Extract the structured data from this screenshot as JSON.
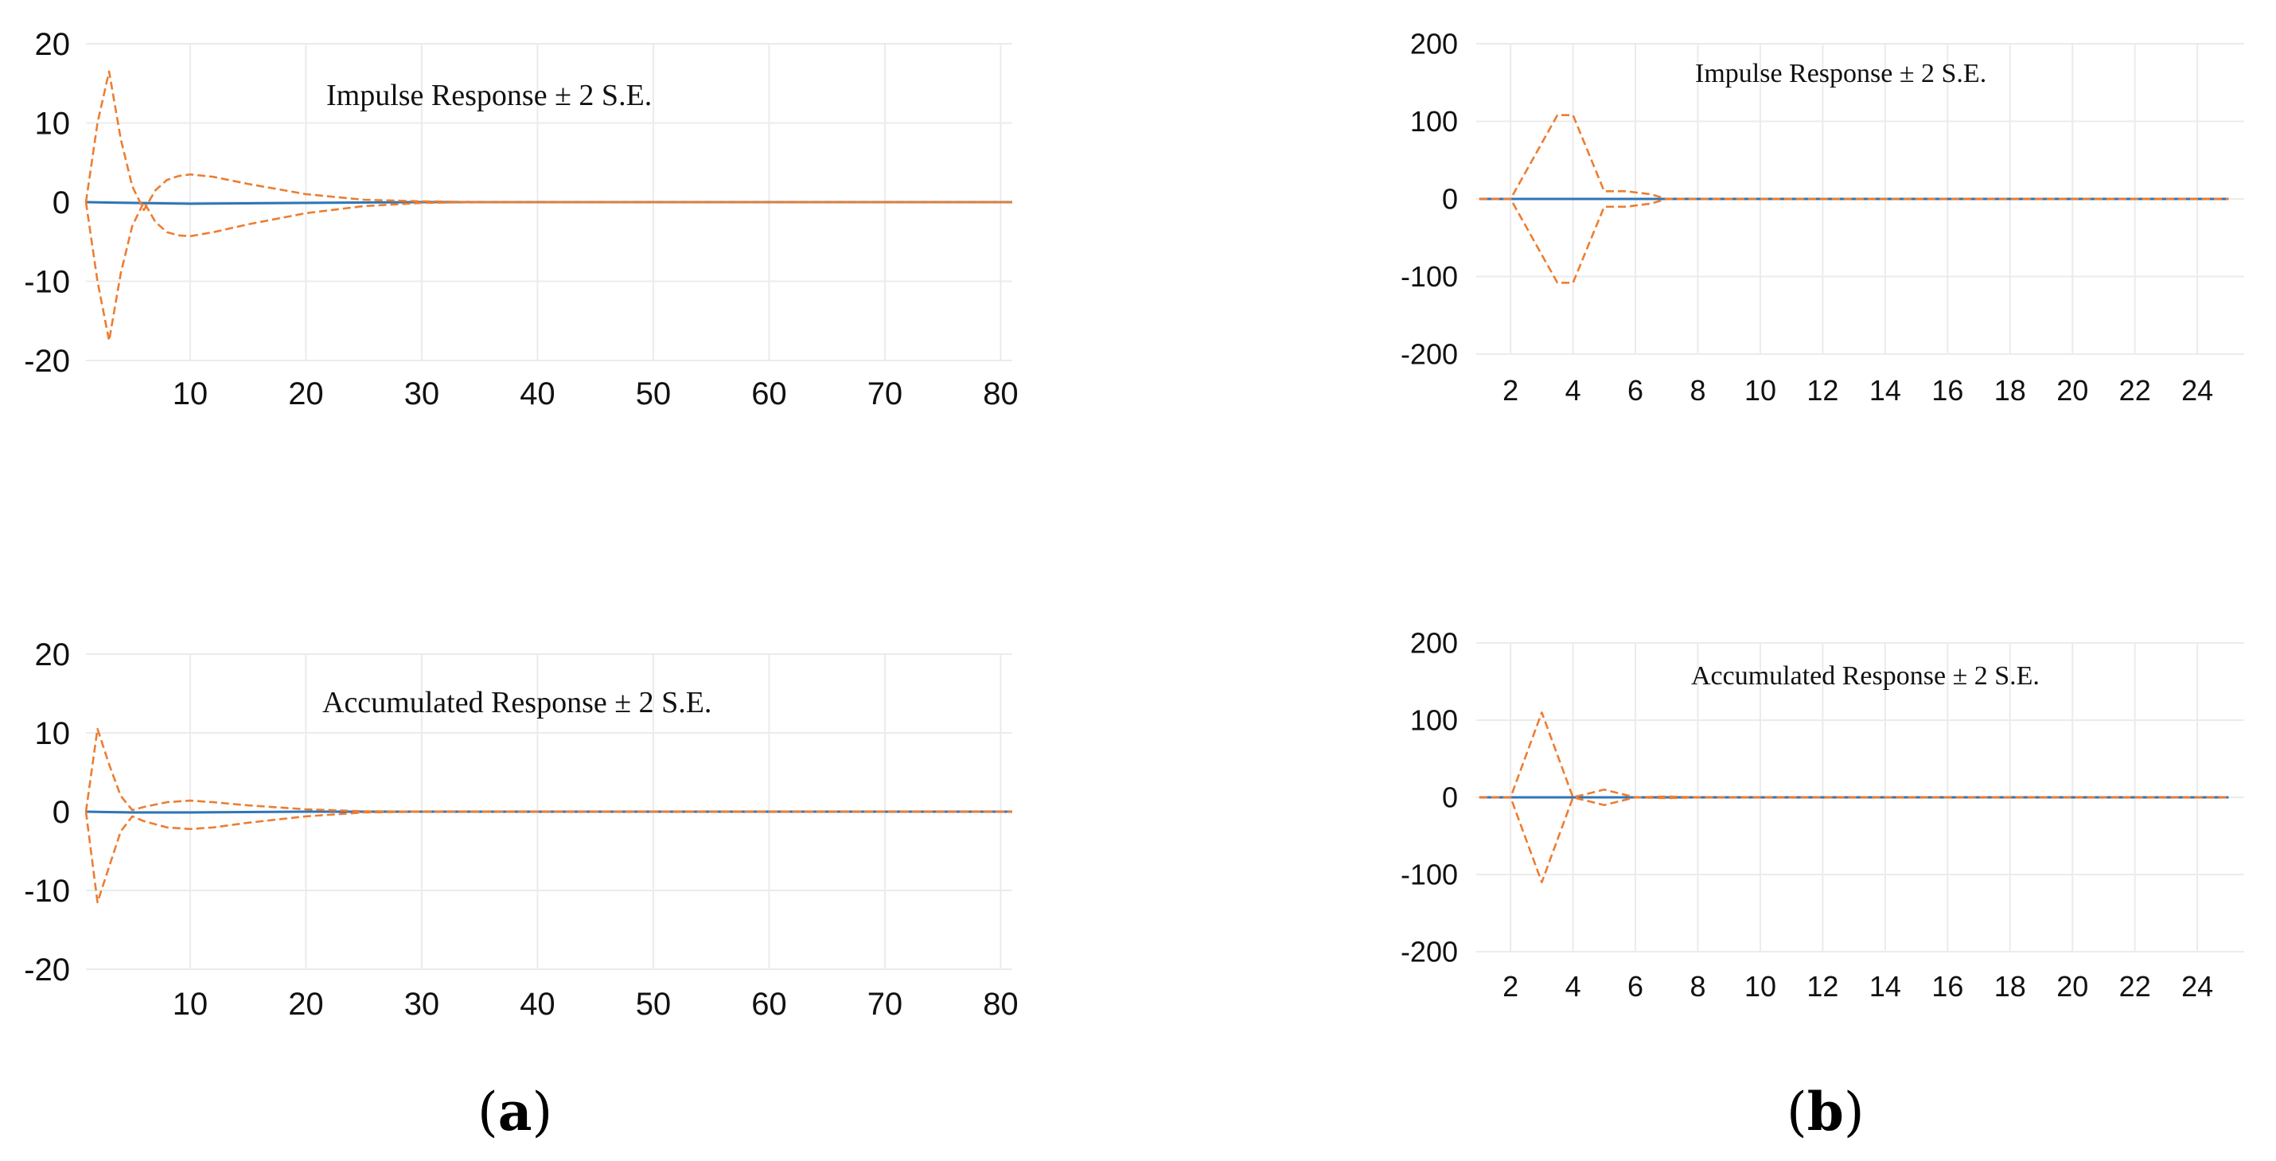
{
  "colors": {
    "upper_band": "#ED7D31",
    "lower_band": "#ED7D31",
    "response": "#2E75B6",
    "grid": "#EBEBEB",
    "text": "#111111"
  },
  "panel_labels": {
    "a": "a",
    "b": "b"
  },
  "chart_data": [
    {
      "id": "a-top",
      "type": "line",
      "title": "Impulse Response ± 2 S.E.",
      "xlim": [
        1,
        81
      ],
      "ylim": [
        -20,
        20
      ],
      "yticks": [
        20,
        10,
        0,
        -10,
        -20
      ],
      "xticks": [
        10,
        20,
        30,
        40,
        50,
        60,
        70,
        80
      ],
      "grid": true,
      "series": [
        {
          "role": "response",
          "style": "solid",
          "x": [
            1,
            5,
            10,
            20,
            30,
            40,
            50,
            60,
            70,
            81
          ],
          "y": [
            0,
            -0.1,
            -0.2,
            -0.1,
            0,
            0,
            0,
            0,
            0,
            0
          ]
        },
        {
          "role": "upper",
          "style": "dashed",
          "x": [
            1,
            2,
            3,
            4,
            5,
            6,
            7,
            8,
            9,
            10,
            12,
            15,
            20,
            25,
            30,
            35,
            40,
            50,
            60,
            70,
            81
          ],
          "y": [
            0,
            10,
            16.5,
            8,
            2,
            -1,
            1.5,
            2.8,
            3.3,
            3.5,
            3.2,
            2.3,
            1.0,
            0.3,
            0.1,
            0,
            0,
            0,
            0,
            0,
            0
          ]
        },
        {
          "role": "lower",
          "style": "dashed",
          "x": [
            1,
            2,
            3,
            4,
            5,
            6,
            7,
            8,
            9,
            10,
            12,
            15,
            20,
            25,
            30,
            35,
            40,
            50,
            60,
            70,
            81
          ],
          "y": [
            0,
            -10,
            -17.5,
            -9,
            -3,
            0,
            -2.5,
            -3.8,
            -4.2,
            -4.3,
            -3.8,
            -2.8,
            -1.4,
            -0.5,
            -0.1,
            0,
            0,
            0,
            0,
            0,
            0
          ]
        }
      ]
    },
    {
      "id": "a-bottom",
      "type": "line",
      "title": "Accumulated Response ± 2 S.E.",
      "xlim": [
        1,
        81
      ],
      "ylim": [
        -20,
        20
      ],
      "yticks": [
        20,
        10,
        0,
        -10,
        -20
      ],
      "xticks": [
        10,
        20,
        30,
        40,
        50,
        60,
        70,
        80
      ],
      "grid": true,
      "series": [
        {
          "role": "response",
          "style": "solid",
          "x": [
            1,
            5,
            10,
            20,
            30,
            40,
            50,
            60,
            70,
            81
          ],
          "y": [
            0,
            -0.1,
            -0.1,
            0,
            0,
            0,
            0,
            0,
            0,
            0
          ]
        },
        {
          "role": "upper",
          "style": "dashed",
          "x": [
            1,
            2,
            3,
            4,
            5,
            6,
            8,
            10,
            12,
            15,
            20,
            25,
            30,
            40,
            50,
            60,
            70,
            81
          ],
          "y": [
            0,
            10.5,
            6,
            2,
            0.2,
            0.6,
            1.2,
            1.4,
            1.2,
            0.8,
            0.3,
            0.05,
            0,
            0,
            0,
            0,
            0,
            0
          ]
        },
        {
          "role": "lower",
          "style": "dashed",
          "x": [
            1,
            2,
            3,
            4,
            5,
            6,
            8,
            10,
            12,
            15,
            20,
            25,
            30,
            40,
            50,
            60,
            70,
            81
          ],
          "y": [
            0,
            -11.5,
            -7,
            -2.5,
            -0.6,
            -1.2,
            -2.0,
            -2.2,
            -2.0,
            -1.4,
            -0.6,
            -0.1,
            0,
            0,
            0,
            0,
            0,
            0
          ]
        }
      ]
    },
    {
      "id": "b-top",
      "type": "line",
      "title": "Impulse Response ± 2 S.E.",
      "xlim": [
        0.9,
        25.5
      ],
      "ylim": [
        -200,
        200
      ],
      "yticks": [
        200,
        100,
        0,
        -100,
        -200
      ],
      "xticks": [
        2,
        4,
        6,
        8,
        10,
        12,
        14,
        16,
        18,
        20,
        22,
        24
      ],
      "grid": true,
      "series": [
        {
          "role": "response",
          "style": "solid",
          "x": [
            1,
            2,
            3,
            4,
            5,
            6,
            7,
            8,
            12,
            16,
            20,
            25
          ],
          "y": [
            0,
            0,
            0,
            0,
            0,
            0,
            0,
            0,
            0,
            0,
            0,
            0
          ]
        },
        {
          "role": "upper",
          "style": "dashed",
          "x": [
            1,
            2,
            3.5,
            4,
            5,
            5.7,
            6.5,
            7,
            8,
            25
          ],
          "y": [
            0,
            0,
            108,
            108,
            10,
            10,
            6,
            0,
            0,
            0
          ]
        },
        {
          "role": "lower",
          "style": "dashed",
          "x": [
            1,
            2,
            3.5,
            4,
            5,
            5.7,
            6.5,
            7,
            8,
            25
          ],
          "y": [
            0,
            0,
            -108,
            -108,
            -10,
            -10,
            -6,
            0,
            0,
            0
          ]
        }
      ]
    },
    {
      "id": "b-bottom",
      "type": "line",
      "title": "Accumulated Response ± 2 S.E.",
      "xlim": [
        0.9,
        25.5
      ],
      "ylim": [
        -200,
        200
      ],
      "yticks": [
        200,
        100,
        0,
        -100,
        -200
      ],
      "xticks": [
        2,
        4,
        6,
        8,
        10,
        12,
        14,
        16,
        18,
        20,
        22,
        24
      ],
      "grid": true,
      "series": [
        {
          "role": "response",
          "style": "solid",
          "x": [
            1,
            2,
            3,
            4,
            5,
            6,
            7,
            8,
            12,
            16,
            20,
            25
          ],
          "y": [
            0,
            0,
            0,
            0,
            0,
            0,
            0,
            0,
            0,
            0,
            0,
            0
          ]
        },
        {
          "role": "upper",
          "style": "dashed",
          "x": [
            1,
            2,
            3,
            4,
            5,
            6,
            7,
            8,
            25
          ],
          "y": [
            0,
            0,
            110,
            0,
            10,
            0,
            1,
            0,
            0
          ]
        },
        {
          "role": "lower",
          "style": "dashed",
          "x": [
            1,
            2,
            3,
            4,
            5,
            6,
            7,
            8,
            25
          ],
          "y": [
            0,
            0,
            -110,
            0,
            -10,
            0,
            -1,
            0,
            0
          ]
        }
      ]
    }
  ]
}
